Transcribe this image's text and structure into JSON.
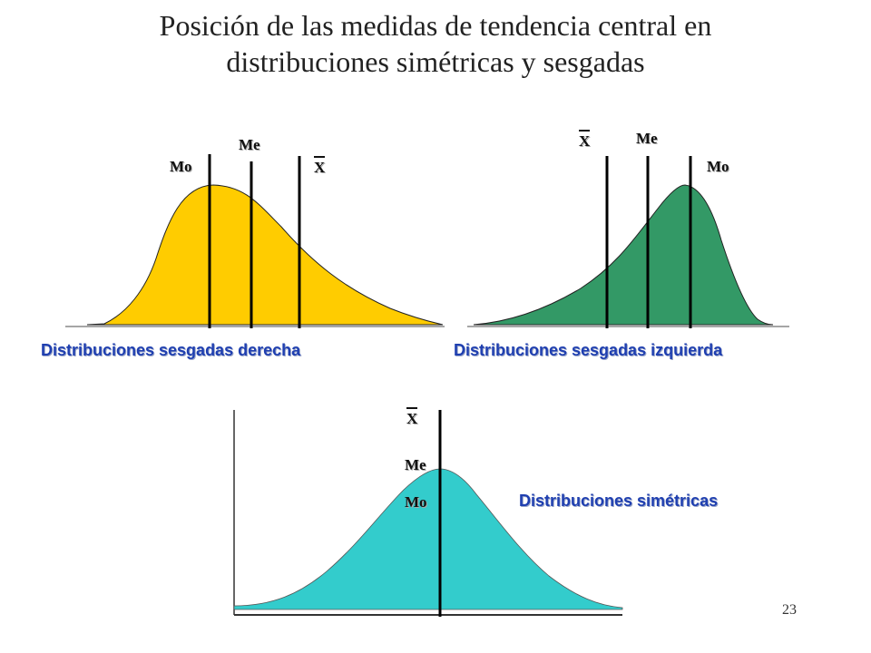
{
  "title": {
    "line1": "Posición de las medidas de tendencia central en",
    "line2": "distribuciones simétricas y sesgadas"
  },
  "right_skew": {
    "label": "Distribuciones sesgadas derecha",
    "mode": "Mo",
    "median": "Me",
    "mean": "X",
    "fill": "#FFCC00"
  },
  "left_skew": {
    "label": "Distribuciones sesgadas izquierda",
    "mean": "X",
    "median": "Me",
    "mode": "Mo",
    "fill": "#339966"
  },
  "symmetric": {
    "label": "Distribuciones simétricas",
    "mean": "X",
    "median": "Me",
    "mode": "Mo",
    "fill": "#33CCCC"
  },
  "page_number": "23"
}
